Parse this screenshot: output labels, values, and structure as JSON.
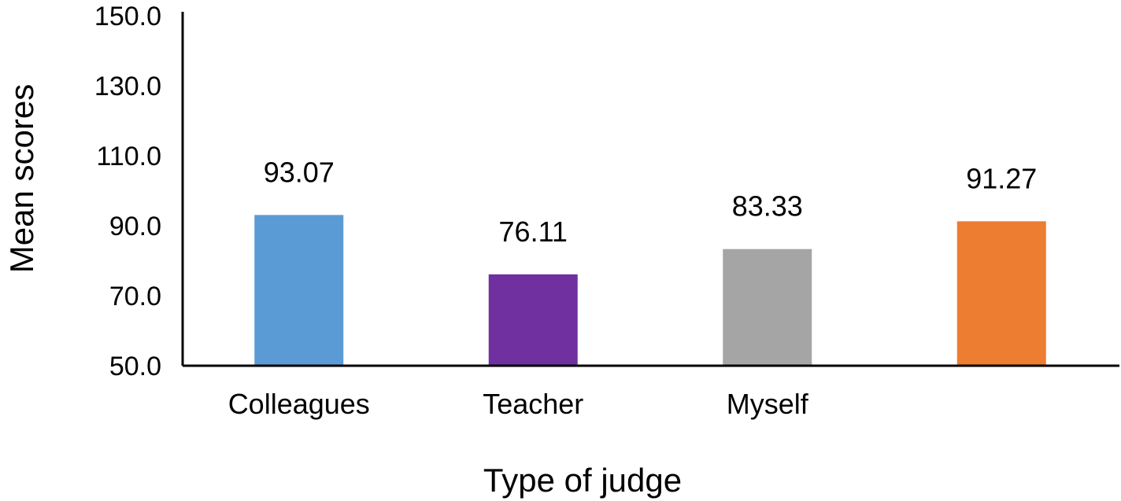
{
  "chart_data": {
    "type": "bar",
    "title": "",
    "xlabel": "Type of judge",
    "ylabel": "Mean scores",
    "ylim": [
      50,
      150
    ],
    "yticks": [
      "50.0",
      "70.0",
      "90.0",
      "110.0",
      "130.0",
      "150.0"
    ],
    "ytick_values": [
      50,
      70,
      90,
      110,
      130,
      150
    ],
    "categories": [
      "Colleagues",
      "Teacher",
      "Myself",
      ""
    ],
    "values": [
      93.07,
      76.11,
      83.33,
      91.27
    ],
    "value_labels": [
      "93.07",
      "76.11",
      "83.33",
      "91.27"
    ],
    "colors": [
      "#5B9BD5",
      "#7030A0",
      "#A5A5A5",
      "#ED7D31"
    ],
    "grid": false,
    "legend": "none"
  }
}
